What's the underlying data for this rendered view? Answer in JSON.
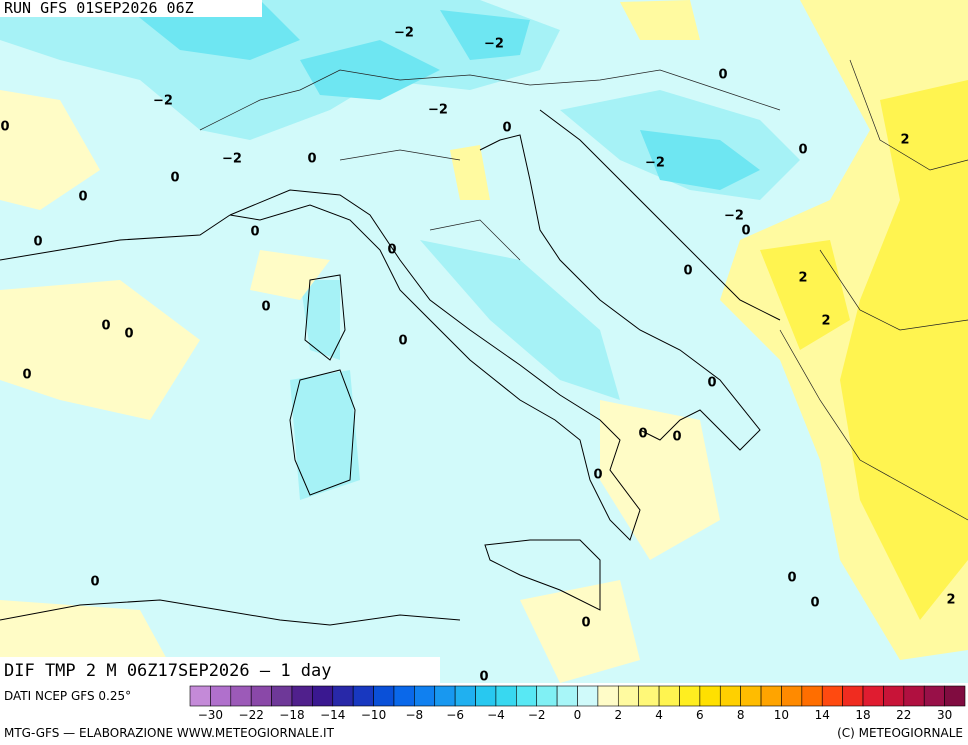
{
  "header": {
    "run": "RUN GFS 01SEP2026 06Z"
  },
  "map": {
    "contour_labels": [
      "−2",
      "−2",
      "0",
      "−2",
      "−2",
      "0",
      "0",
      "0",
      "2",
      "−2",
      "0",
      "−2",
      "0",
      "0",
      "−2",
      "0",
      "0",
      "0",
      "0",
      "0",
      "2",
      "0",
      "2",
      "0",
      "0",
      "0",
      "0",
      "0",
      "0",
      "0",
      "0",
      "0",
      "0",
      "0",
      "2",
      "0",
      "0"
    ]
  },
  "footer": {
    "field": "DIF TMP 2 M 06Z17SEP2026 — 1 day",
    "source": "DATI NCEP GFS 0.25°",
    "credit_left": "MTG-GFS — ELABORAZIONE WWW.METEOGIORNALE.IT",
    "credit_right": "(C) METEOGIORNALE"
  },
  "colorbar": {
    "colors": [
      "#c48ad8",
      "#b070cc",
      "#9c5ab8",
      "#8a48a8",
      "#6e3898",
      "#50208c",
      "#3a1890",
      "#2828a8",
      "#1838c0",
      "#0a50d8",
      "#0a68ea",
      "#1080f0",
      "#1898f0",
      "#20b0f0",
      "#28c8f0",
      "#38d8f0",
      "#58e8f4",
      "#80f0f4",
      "#a8f6f8",
      "#d0fafa",
      "#fffcc8",
      "#fffaa0",
      "#fff878",
      "#fff450",
      "#ffee20",
      "#ffe000",
      "#ffd000",
      "#ffbc00",
      "#ffa400",
      "#ff8a00",
      "#ff6e00",
      "#ff4a10",
      "#f02c20",
      "#e01c30",
      "#c81438",
      "#b01040",
      "#981048",
      "#800c40"
    ],
    "labels": [
      "−30",
      "−22",
      "−18",
      "−14",
      "−10",
      "−8",
      "−6",
      "−4",
      "−2",
      "0",
      "2",
      "4",
      "6",
      "8",
      "10",
      "14",
      "18",
      "22",
      "30"
    ]
  }
}
